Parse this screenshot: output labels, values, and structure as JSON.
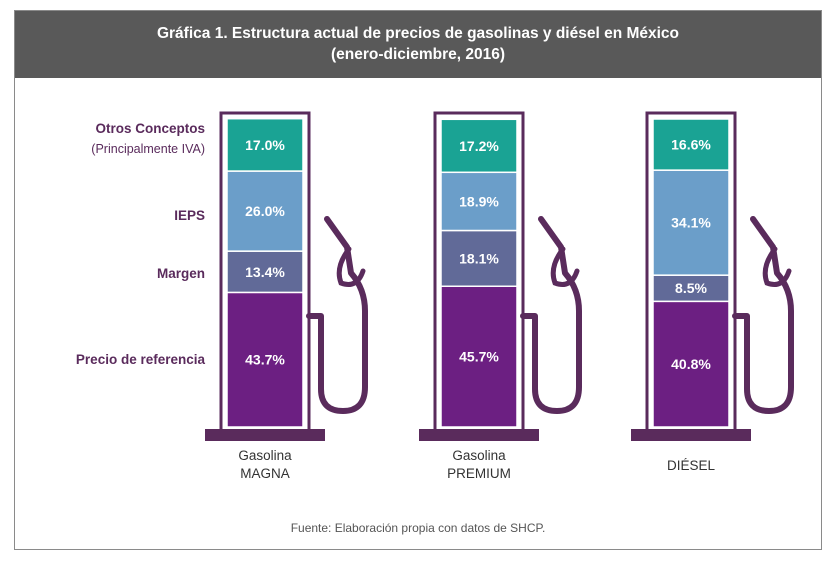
{
  "title_line1": "Gráfica 1. Estructura actual de precios de gasolinas y diésel en México",
  "title_line2": "(enero-diciembre, 2016)",
  "source": "Fuente: Elaboración propia con datos de SHCP.",
  "categories": {
    "otros": "Otros Conceptos",
    "otros_sub": "(Principalmente IVA)",
    "ieps": "IEPS",
    "margen": "Margen",
    "precio": "Precio de referencia"
  },
  "pumps": {
    "magna": {
      "line1": "Gasolina",
      "line2": "MAGNA"
    },
    "premium": {
      "line1": "Gasolina",
      "line2": "PREMIUM"
    },
    "diesel": {
      "line1": "DIÉSEL",
      "line2": ""
    }
  },
  "colors": {
    "otros": "#1aa394",
    "ieps": "#6b9ec9",
    "margen": "#616a98",
    "precio": "#6c1f82",
    "pump_outline": "#5a2b5c",
    "base": "#5a2b5c"
  },
  "chart_data": {
    "type": "bar",
    "stacked": true,
    "categories": [
      "Gasolina MAGNA",
      "Gasolina PREMIUM",
      "DIÉSEL"
    ],
    "series": [
      {
        "name": "Precio de referencia",
        "values": [
          43.7,
          45.7,
          40.8
        ],
        "labels": [
          "43.7%",
          "45.7%",
          "40.8%"
        ]
      },
      {
        "name": "Margen",
        "values": [
          13.4,
          18.1,
          8.5
        ],
        "labels": [
          "13.4%",
          "18.1%",
          "8.5%"
        ]
      },
      {
        "name": "IEPS",
        "values": [
          26.0,
          18.9,
          34.1
        ],
        "labels": [
          "26.0%",
          "18.9%",
          "34.1%"
        ]
      },
      {
        "name": "Otros Conceptos",
        "values": [
          17.0,
          17.2,
          16.6
        ],
        "labels": [
          "17.0%",
          "17.2%",
          "16.6%"
        ]
      }
    ],
    "unit": "%"
  }
}
